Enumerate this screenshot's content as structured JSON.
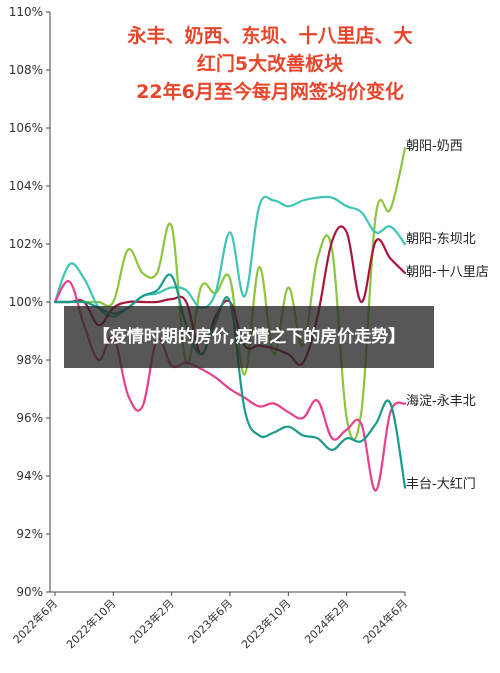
{
  "overlay_text": "【疫情时期的房价,疫情之下的房价走势】",
  "chart_data": {
    "type": "line",
    "title": [
      "永丰、奶西、东坝、十八里店、大",
      "红门5大改善板块",
      "22年6月至今每月网签均价变化"
    ],
    "xlabel": "",
    "ylabel": "",
    "ylim": [
      90,
      110
    ],
    "yticks": [
      "90%",
      "92%",
      "94%",
      "96%",
      "98%",
      "100%",
      "102%",
      "104%",
      "106%",
      "108%",
      "110%"
    ],
    "x_ticks": [
      "2022年6月",
      "2022年10月",
      "2023年2月",
      "2023年6月",
      "2023年10月",
      "2024年2月",
      "2024年6月"
    ],
    "x_range": [
      0,
      24
    ],
    "grid": false,
    "legend": "labels at line ends (right)",
    "series": [
      {
        "name": "朝阳-奶西",
        "color": "#8cc63f",
        "x": [
          0,
          1,
          2,
          3,
          4,
          5,
          6,
          7,
          8,
          9,
          10,
          11,
          12,
          13,
          14,
          15,
          16,
          17,
          18,
          19,
          20,
          21,
          22,
          23,
          24
        ],
        "values": [
          100.0,
          100.0,
          100.0,
          100.0,
          100.0,
          101.8,
          101.0,
          101.0,
          102.6,
          97.9,
          100.5,
          100.3,
          100.8,
          97.5,
          101.2,
          98.2,
          100.5,
          98.5,
          101.5,
          101.8,
          96.0,
          96.2,
          103.0,
          103.2,
          105.3
        ]
      },
      {
        "name": "朝阳-东坝北",
        "color": "#3ec5b5",
        "x": [
          0,
          1,
          2,
          3,
          4,
          5,
          6,
          7,
          8,
          9,
          10,
          11,
          12,
          13,
          14,
          15,
          16,
          17,
          18,
          19,
          20,
          21,
          22,
          23,
          24
        ],
        "values": [
          100.0,
          101.3,
          100.8,
          99.8,
          99.5,
          99.8,
          100.2,
          100.3,
          100.5,
          100.4,
          99.8,
          100.3,
          102.4,
          100.2,
          103.3,
          103.5,
          103.3,
          103.5,
          103.6,
          103.6,
          103.3,
          103.1,
          102.4,
          102.6,
          102.0
        ]
      },
      {
        "name": "朝阳-十八里店",
        "color": "#a8163c",
        "x": [
          0,
          1,
          2,
          3,
          4,
          5,
          6,
          7,
          8,
          9,
          10,
          11,
          12,
          13,
          14,
          15,
          16,
          17,
          18,
          19,
          20,
          21,
          22,
          23,
          24
        ],
        "values": [
          100.0,
          100.0,
          100.0,
          99.2,
          99.8,
          100.0,
          100.0,
          100.0,
          100.1,
          100.0,
          98.2,
          99.5,
          100.0,
          98.5,
          98.5,
          98.4,
          98.2,
          97.9,
          99.5,
          102.1,
          102.4,
          100.0,
          102.1,
          101.5,
          101.0
        ]
      },
      {
        "name": "海淀-永丰北",
        "color": "#e8408c",
        "x": [
          0,
          1,
          2,
          3,
          4,
          5,
          6,
          7,
          8,
          9,
          10,
          11,
          12,
          13,
          14,
          15,
          16,
          17,
          18,
          19,
          20,
          21,
          22,
          23,
          24
        ],
        "values": [
          100.0,
          100.7,
          99.2,
          98.0,
          98.8,
          96.8,
          96.4,
          98.7,
          97.8,
          97.9,
          97.7,
          97.4,
          97.0,
          96.7,
          96.4,
          96.5,
          96.2,
          96.0,
          96.6,
          95.3,
          95.6,
          95.8,
          93.5,
          96.2,
          96.5
        ]
      },
      {
        "name": "丰台-大红门",
        "color": "#1a9a8a",
        "x": [
          0,
          1,
          2,
          3,
          4,
          5,
          6,
          7,
          8,
          9,
          10,
          11,
          12,
          13,
          14,
          15,
          16,
          17,
          18,
          19,
          20,
          21,
          22,
          23,
          24
        ],
        "values": [
          100.0,
          100.0,
          100.0,
          99.8,
          99.6,
          99.8,
          100.2,
          100.4,
          100.9,
          99.2,
          98.2,
          99.3,
          100.0,
          96.3,
          95.4,
          95.5,
          95.7,
          95.4,
          95.3,
          94.9,
          95.3,
          95.2,
          95.8,
          96.5,
          93.6
        ]
      }
    ]
  }
}
